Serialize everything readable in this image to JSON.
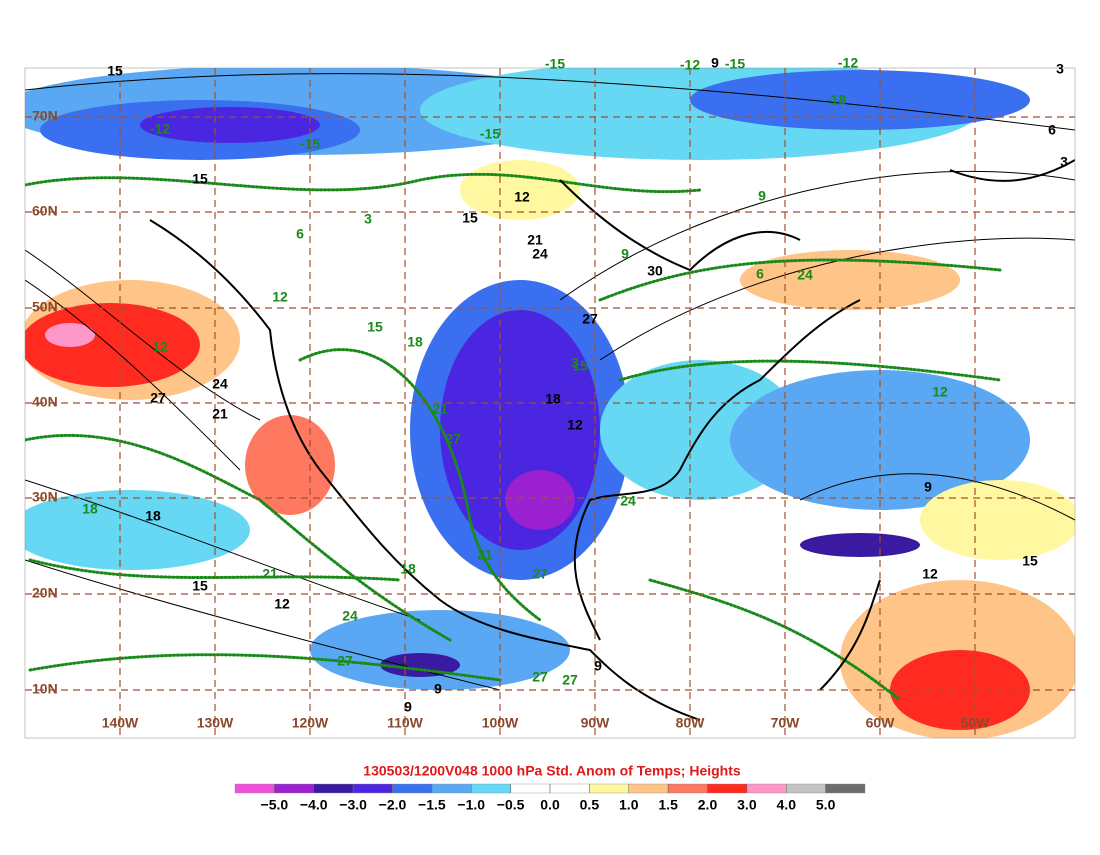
{
  "title": "130503/1200V048 1000 hPa Std. Anom of Temps; Heights",
  "lat_labels": [
    "10N",
    "20N",
    "30N",
    "40N",
    "50N",
    "60N",
    "70N"
  ],
  "lon_labels": [
    "140W",
    "130W",
    "120W",
    "110W",
    "100W",
    "90W",
    "80W",
    "70W",
    "60W",
    "50W"
  ],
  "colorbar": {
    "colors": [
      "#f050d8",
      "#9a20d0",
      "#3a1aa0",
      "#4a26e0",
      "#3a70f0",
      "#5aa8f4",
      "#66d8f4",
      "#ffffff",
      "#ffffff",
      "#fff8a0",
      "#ffc488",
      "#ff7860",
      "#ff2a20",
      "#ff98c8",
      "#c4c4c4",
      "#6c6c6c"
    ],
    "ticks": [
      {
        "value": -5,
        "label": "−5.0"
      },
      {
        "value": -4,
        "label": "−4.0"
      },
      {
        "value": -3,
        "label": "−3.0"
      },
      {
        "value": -2,
        "label": "−2.0"
      },
      {
        "value": -1.5,
        "label": "−1.5"
      },
      {
        "value": -1,
        "label": "−1.0"
      },
      {
        "value": -0.5,
        "label": "−0.5"
      },
      {
        "value": 0,
        "label": "0.0"
      },
      {
        "value": 0.5,
        "label": "0.5"
      },
      {
        "value": 1,
        "label": "1.0"
      },
      {
        "value": 1.5,
        "label": "1.5"
      },
      {
        "value": 2,
        "label": "2.0"
      },
      {
        "value": 3,
        "label": "3.0"
      },
      {
        "value": 4,
        "label": "4.0"
      },
      {
        "value": 5,
        "label": "5.0"
      }
    ]
  },
  "height_labels": [
    "15",
    "9",
    "3",
    "15",
    "12",
    "15",
    "24",
    "21",
    "30",
    "27",
    "18",
    "12",
    "27",
    "24",
    "21",
    "18",
    "15",
    "12",
    "9",
    "9",
    "9",
    "12",
    "15",
    "9",
    "6",
    "3"
  ],
  "anomaly_labels": [
    "-15",
    "-12",
    "-15",
    "-12",
    "-15",
    "-18",
    "-15",
    "-12",
    "3",
    "6",
    "9",
    "12",
    "15",
    "18",
    "21",
    "24",
    "27",
    "12",
    "18",
    "21",
    "24",
    "27",
    "27",
    "27",
    "12",
    "9",
    "6",
    "3",
    "15",
    "21",
    "24",
    "18",
    "27"
  ]
}
